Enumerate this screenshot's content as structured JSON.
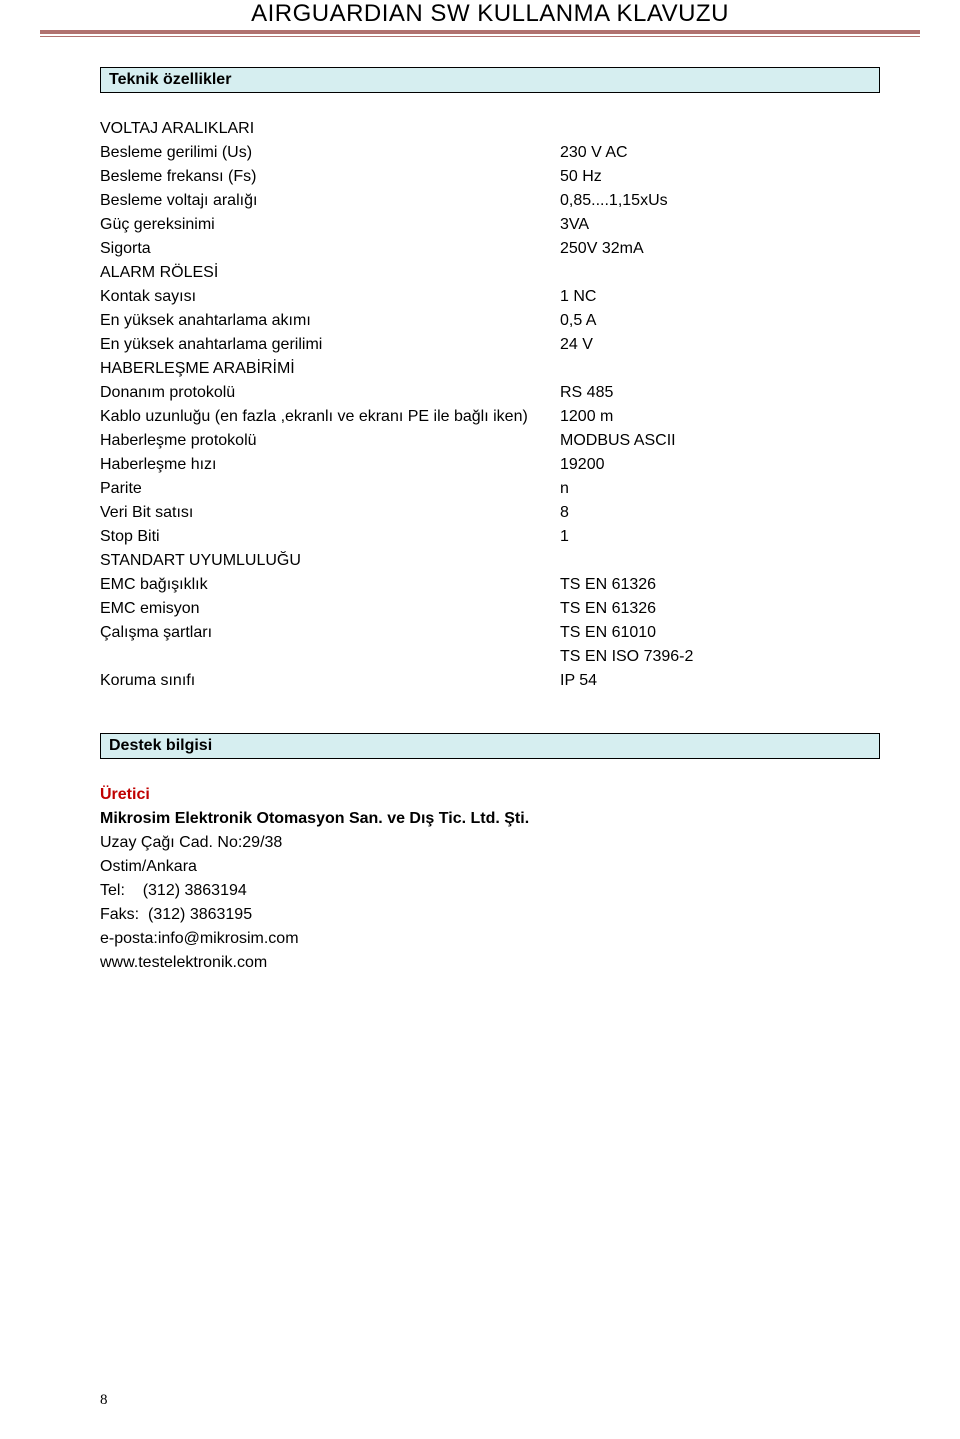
{
  "header": {
    "title": "AIRGUARDIAN SW KULLANMA KLAVUZU"
  },
  "section1": {
    "title": "Teknik özellikler"
  },
  "specs": {
    "group1_head": "VOLTAJ ARALIKLARI",
    "rows1": [
      {
        "label": "Besleme gerilimi (Us)",
        "value": "230 V AC"
      },
      {
        "label": "Besleme frekansı (Fs)",
        "value": "50 Hz"
      },
      {
        "label": "Besleme voltajı aralığı",
        "value": "0,85....1,15xUs"
      },
      {
        "label": "Güç gereksinimi",
        "value": "3VA"
      },
      {
        "label": "Sigorta",
        "value": "250V 32mA"
      }
    ],
    "group2_head": "ALARM RÖLESİ",
    "rows2": [
      {
        "label": "Kontak sayısı",
        "value": "1 NC"
      },
      {
        "label": "En yüksek anahtarlama akımı",
        "value": "0,5 A"
      },
      {
        "label": "En yüksek anahtarlama gerilimi",
        "value": "24 V"
      }
    ],
    "group3_head": "HABERLEŞME ARABİRİMİ",
    "rows3": [
      {
        "label": "Donanım protokolü",
        "value": "RS 485"
      },
      {
        "label": "Kablo uzunluğu (en fazla ,ekranlı ve ekranı PE ile bağlı iken)",
        "value": "1200 m"
      },
      {
        "label": "Haberleşme protokolü",
        "value": "MODBUS ASCII"
      },
      {
        "label": "Haberleşme hızı",
        "value": "19200"
      },
      {
        "label": "Parite",
        "value": "n"
      },
      {
        "label": "Veri Bit satısı",
        "value": "8"
      },
      {
        "label": "Stop Biti",
        "value": "1"
      }
    ],
    "group4_head": "STANDART UYUMLULUĞU",
    "rows4": [
      {
        "label": "EMC bağışıklık",
        "value": "TS EN 61326"
      },
      {
        "label": "EMC emisyon",
        "value": "TS EN 61326"
      },
      {
        "label": "Çalışma şartları",
        "value": "TS EN 61010"
      },
      {
        "label": "",
        "value": "TS EN ISO 7396-2"
      },
      {
        "label": "Koruma sınıfı",
        "value": "IP 54"
      }
    ]
  },
  "section2": {
    "title": "Destek bilgisi"
  },
  "support": {
    "producer_label": "Üretici",
    "company": "Mikrosim Elektronik Otomasyon San. ve Dış Tic. Ltd. Şti.",
    "address1": "Uzay Çağı Cad. No:29/38",
    "address2": "Ostim/Ankara",
    "tel_label": "Tel:",
    "tel_value": "(312) 3863194",
    "fax_label": "Faks:",
    "fax_value": "(312) 3863195",
    "email": "e-posta:info@mikrosim.com",
    "web": "www.testelektronik.com"
  },
  "page_number": "8",
  "colors": {
    "rule": "#b0716f",
    "section_bg": "#d6eef0",
    "producer": "#c00000"
  }
}
